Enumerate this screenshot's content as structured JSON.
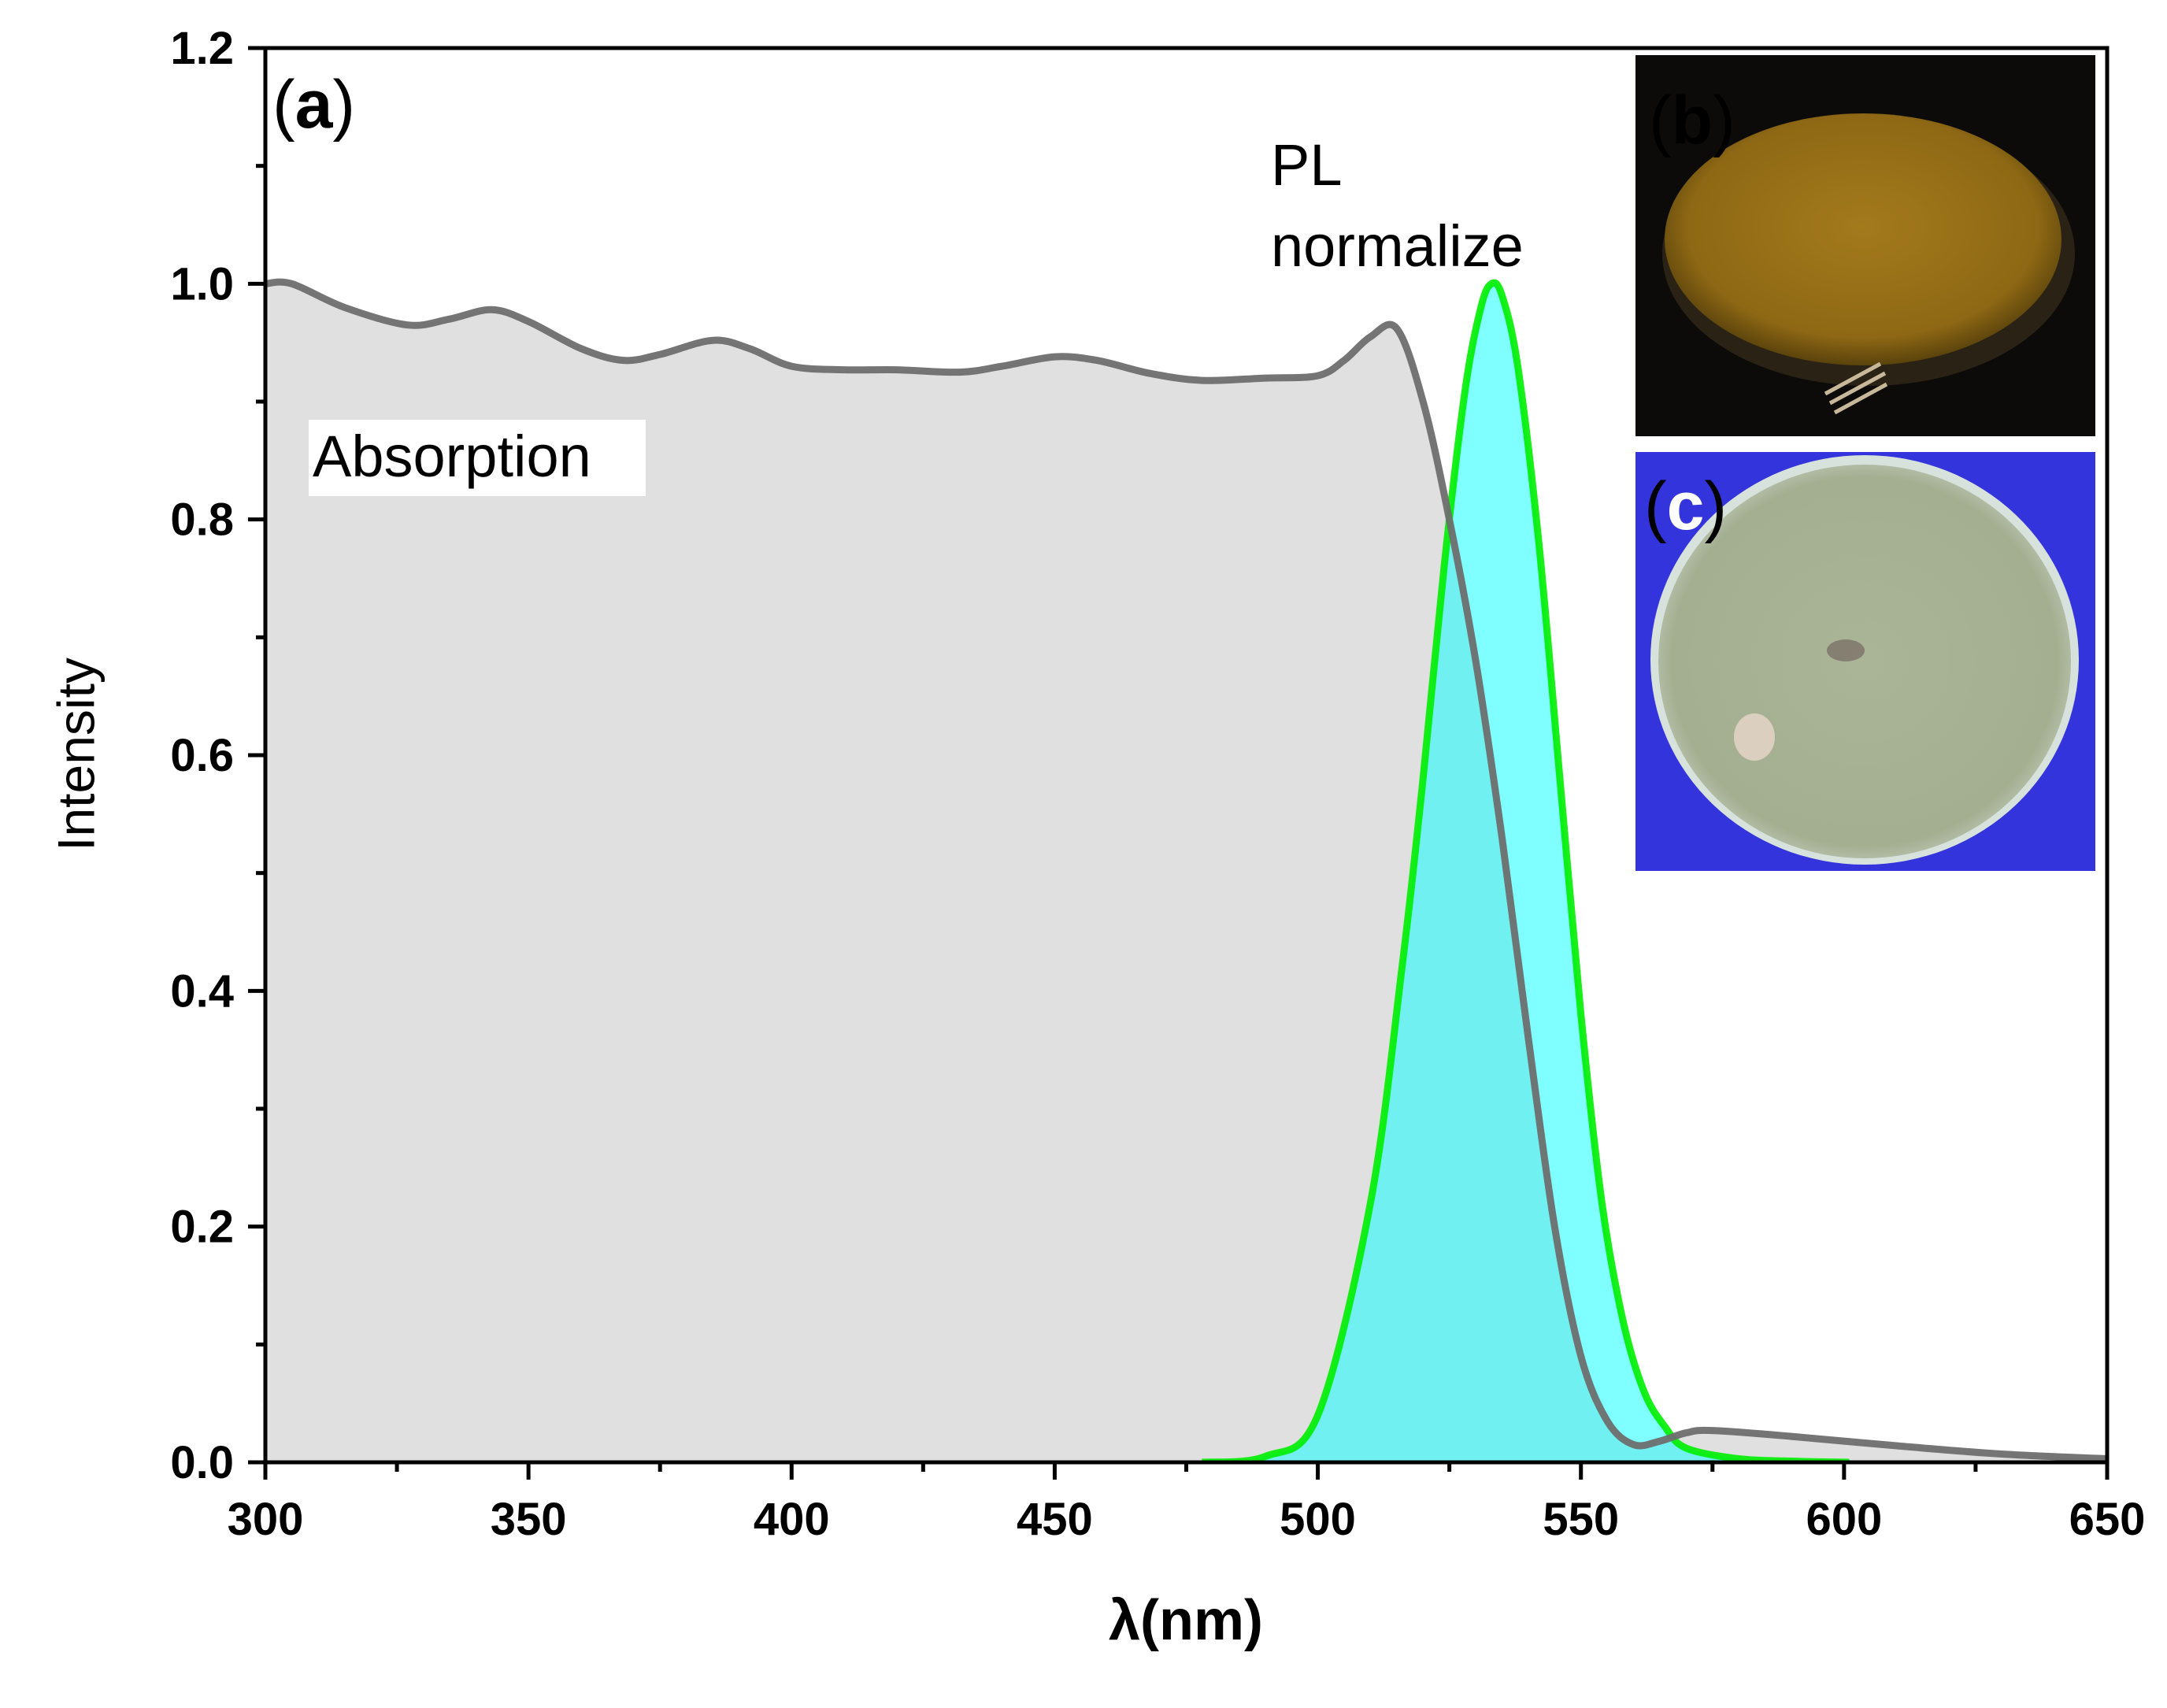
{
  "chart_data": {
    "type": "area",
    "title": "",
    "xlabel": "λ(nm)",
    "ylabel": "Intensity",
    "xlim": [
      300,
      650
    ],
    "ylim": [
      0,
      1.2
    ],
    "x_ticks": [
      "300",
      "350",
      "400",
      "450",
      "500",
      "550",
      "600",
      "650"
    ],
    "y_ticks": [
      "0.0",
      "0.2",
      "0.4",
      "0.6",
      "0.8",
      "1.0",
      "1.2"
    ],
    "grid": false,
    "series": [
      {
        "name": "Absorption",
        "color": "#6e6e6e",
        "fill": "#e0e0e0",
        "x": [
          300,
          305,
          315,
          327,
          335,
          343,
          350,
          360,
          368,
          375,
          385,
          392,
          400,
          410,
          420,
          432,
          440,
          450,
          458,
          468,
          478,
          490,
          500,
          505,
          510,
          515,
          520,
          525,
          530,
          535,
          540,
          545,
          550,
          555,
          560,
          565,
          570,
          575,
          590,
          610,
          630,
          650
        ],
        "y": [
          1.0,
          1.0,
          0.98,
          0.965,
          0.97,
          0.978,
          0.968,
          0.945,
          0.935,
          0.94,
          0.952,
          0.945,
          0.93,
          0.927,
          0.927,
          0.925,
          0.93,
          0.938,
          0.935,
          0.924,
          0.918,
          0.92,
          0.922,
          0.935,
          0.955,
          0.962,
          0.9,
          0.8,
          0.68,
          0.53,
          0.36,
          0.2,
          0.09,
          0.035,
          0.015,
          0.018,
          0.025,
          0.027,
          0.022,
          0.014,
          0.007,
          0.003
        ]
      },
      {
        "name": "PL normalize",
        "color": "#00ee00",
        "fill": "#00ffff",
        "x": [
          478,
          490,
          500,
          510,
          516,
          520,
          524,
          528,
          531,
          533,
          535,
          538,
          542,
          546,
          550,
          554,
          558,
          562,
          566,
          570,
          580,
          590,
          601
        ],
        "y": [
          0.0,
          0.005,
          0.04,
          0.22,
          0.42,
          0.58,
          0.76,
          0.91,
          0.98,
          1.0,
          0.99,
          0.93,
          0.78,
          0.58,
          0.38,
          0.22,
          0.12,
          0.06,
          0.03,
          0.012,
          0.003,
          0.001,
          0.0
        ]
      }
    ],
    "annotations": {
      "absorption_label": "Absorption",
      "pl_label_line1": "PL",
      "pl_label_line2": "normalize"
    }
  },
  "panels": {
    "a": {
      "open": "(",
      "letter": "a",
      "close": ")"
    },
    "b": {
      "open": "(",
      "letter": "b",
      "close": ")"
    },
    "c": {
      "open": "(",
      "letter": "c",
      "close": ")"
    }
  },
  "photos": {
    "b": {
      "background": "#0d0b09",
      "disc_color": "#9b7216"
    },
    "c": {
      "background": "#3434dc",
      "disc_color": "#a8b294"
    }
  }
}
